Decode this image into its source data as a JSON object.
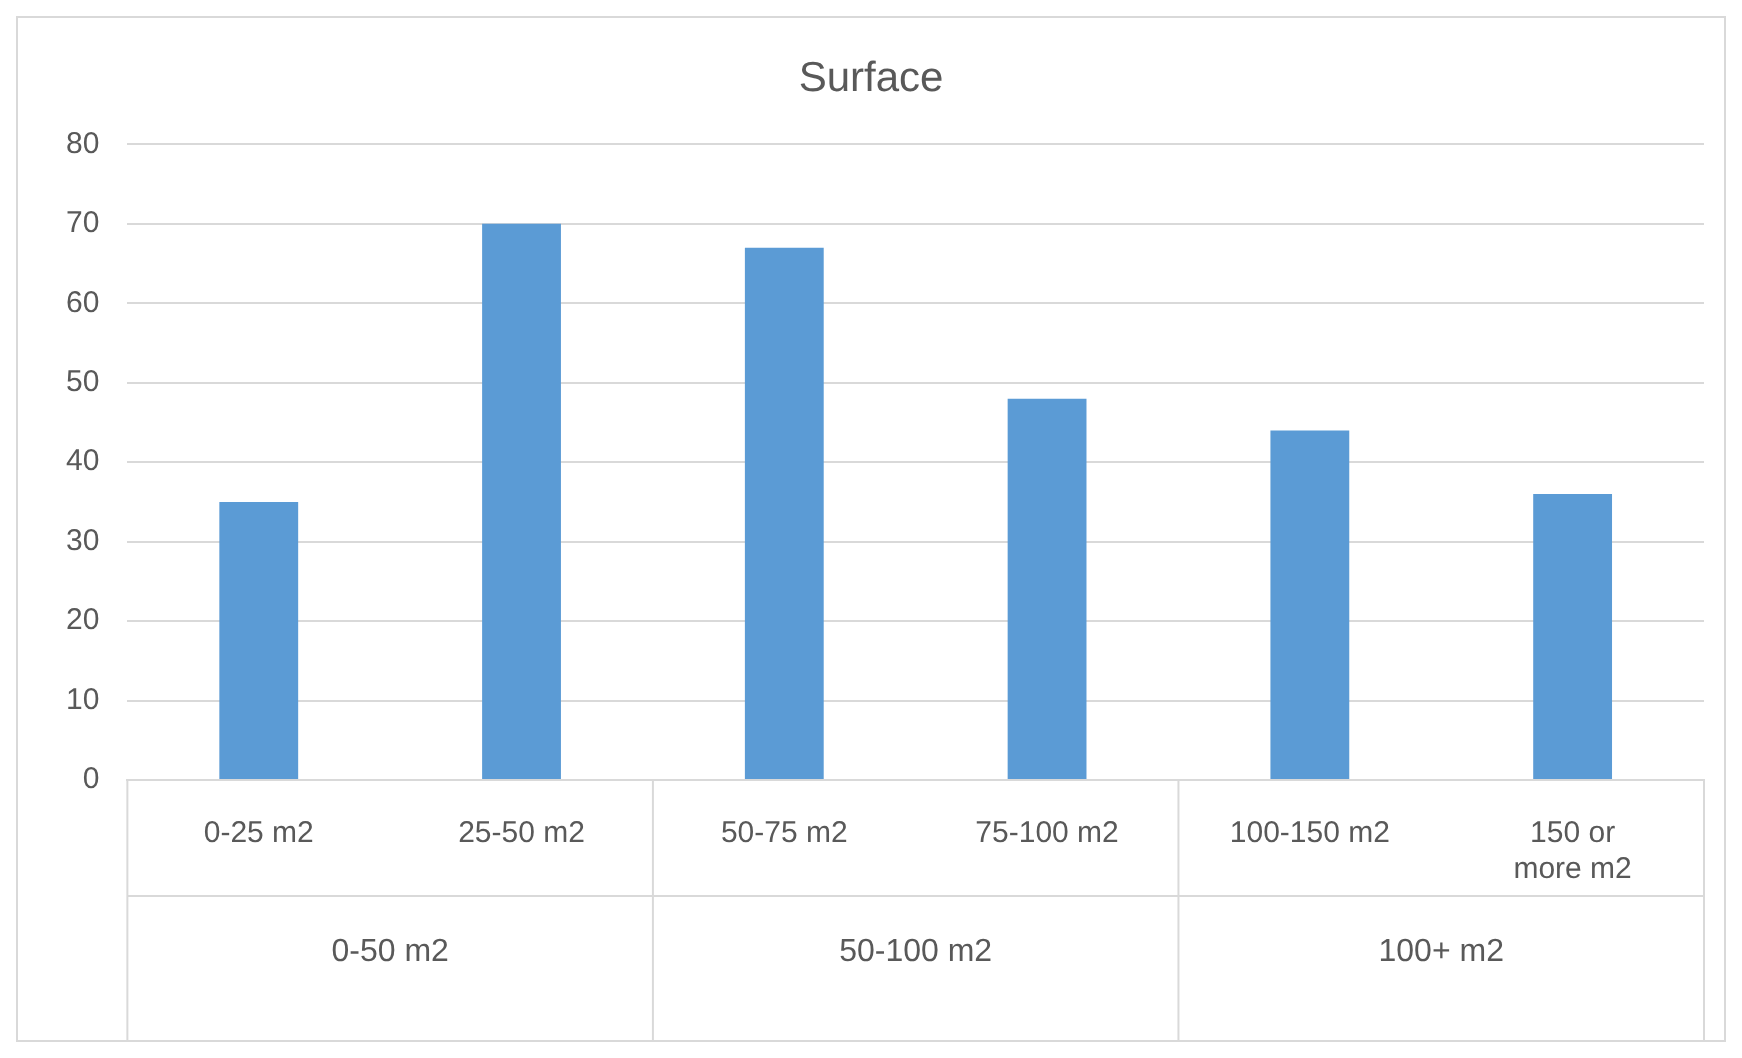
{
  "chart_data": {
    "type": "bar",
    "title": "Surface",
    "categories": [
      "0-25 m2",
      "25-50 m2",
      "50-75 m2",
      "75-100 m2",
      "100-150 m2",
      "150 or more m2"
    ],
    "values": [
      35,
      70,
      67,
      48,
      44,
      36
    ],
    "color": "#5b9bd5",
    "ylim": [
      0,
      80
    ],
    "yticks": [
      0,
      10,
      20,
      30,
      40,
      50,
      60,
      70,
      80
    ],
    "grid": "y",
    "legend": false,
    "annotations": [
      "0-50 m2",
      "50-100 m2",
      "100+ m2"
    ]
  }
}
